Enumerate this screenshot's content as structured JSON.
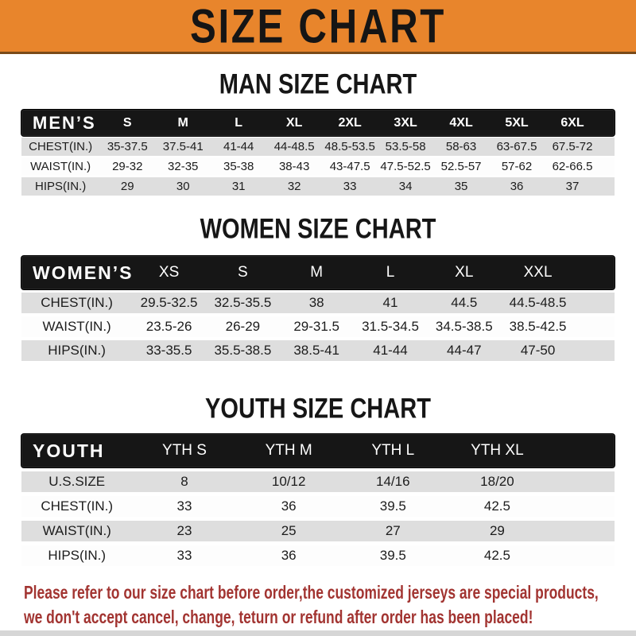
{
  "banner": {
    "title": "SIZE CHART"
  },
  "sections": {
    "men": {
      "heading": "MAN SIZE CHART",
      "table": {
        "label": "MEN’S",
        "sizes": [
          "S",
          "M",
          "L",
          "XL",
          "2XL",
          "3XL",
          "4XL",
          "5XL",
          "6XL"
        ],
        "rows": [
          {
            "label": "CHEST(IN.)",
            "values": [
              "35-37.5",
              "37.5-41",
              "41-44",
              "44-48.5",
              "48.5-53.5",
              "53.5-58",
              "58-63",
              "63-67.5",
              "67.5-72"
            ]
          },
          {
            "label": "WAIST(IN.)",
            "values": [
              "29-32",
              "32-35",
              "35-38",
              "38-43",
              "43-47.5",
              "47.5-52.5",
              "52.5-57",
              "57-62",
              "62-66.5"
            ]
          },
          {
            "label": "HIPS(IN.)",
            "values": [
              "29",
              "30",
              "31",
              "32",
              "33",
              "34",
              "35",
              "36",
              "37"
            ]
          }
        ]
      }
    },
    "women": {
      "heading": "WOMEN SIZE CHART",
      "table": {
        "label": "WOMEN’S",
        "sizes": [
          "XS",
          "S",
          "M",
          "L",
          "XL",
          "XXL"
        ],
        "rows": [
          {
            "label": "CHEST(IN.)",
            "values": [
              "29.5-32.5",
              "32.5-35.5",
              "38",
              "41",
              "44.5",
              "44.5-48.5"
            ]
          },
          {
            "label": "WAIST(IN.)",
            "values": [
              "23.5-26",
              "26-29",
              "29-31.5",
              "31.5-34.5",
              "34.5-38.5",
              "38.5-42.5"
            ]
          },
          {
            "label": "HIPS(IN.)",
            "values": [
              "33-35.5",
              "35.5-38.5",
              "38.5-41",
              "41-44",
              "44-47",
              "47-50"
            ]
          }
        ]
      }
    },
    "youth": {
      "heading": "YOUTH SIZE CHART",
      "table": {
        "label": "YOUTH",
        "sizes": [
          "YTH S",
          "YTH M",
          "YTH L",
          "YTH XL"
        ],
        "rows": [
          {
            "label": "U.S.SIZE",
            "values": [
              "8",
              "10/12",
              "14/16",
              "18/20"
            ]
          },
          {
            "label": "CHEST(IN.)",
            "values": [
              "33",
              "36",
              "39.5",
              "42.5"
            ]
          },
          {
            "label": "WAIST(IN.)",
            "values": [
              "23",
              "25",
              "27",
              "29"
            ]
          },
          {
            "label": "HIPS(IN.)",
            "values": [
              "33",
              "36",
              "39.5",
              "42.5"
            ]
          }
        ]
      }
    }
  },
  "footer": {
    "lines": [
      "Please refer to our size chart before order,the customized jerseys are special products,",
      "we don't accept cancel, change, teturn or refund after order has been placed!"
    ]
  },
  "theme": {
    "banner_bg": "#E8852C",
    "banner_border": "#7A4A18",
    "header_bar": "#161616",
    "row_gray": "#DEDEDE",
    "row_white": "#FDFDFD",
    "footer_red": "#A23431",
    "text_black": "#161616",
    "bottom_bar": "#D6D6D6"
  }
}
